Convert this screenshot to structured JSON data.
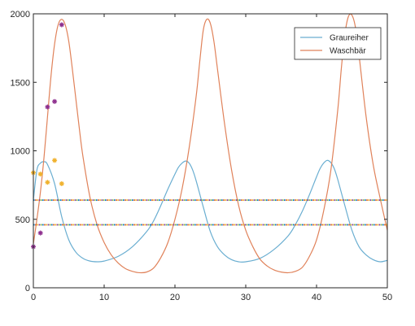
{
  "chart_data": {
    "type": "line",
    "xlim": [
      0,
      50
    ],
    "ylim": [
      0,
      2000
    ],
    "xticks": [
      0,
      10,
      20,
      30,
      40,
      50
    ],
    "yticks": [
      0,
      500,
      1000,
      1500,
      2000
    ],
    "grid": false,
    "legend_position": "top-right",
    "series": [
      {
        "name": "Graureiher",
        "color": "#6aaed1",
        "x": [
          0,
          0.5,
          1,
          1.5,
          2,
          3,
          4,
          5,
          6,
          7,
          8,
          9,
          10,
          12,
          14,
          16,
          17,
          18,
          19,
          20,
          20.5,
          21,
          21.5,
          22,
          22.5,
          23,
          24,
          25,
          26,
          27,
          28,
          29,
          30,
          32,
          34,
          36,
          37,
          38,
          39,
          40,
          40.5,
          41,
          41.5,
          42,
          42.5,
          43,
          44,
          45,
          46,
          47,
          48,
          49,
          50
        ],
        "y": [
          640,
          860,
          910,
          920,
          900,
          760,
          520,
          350,
          260,
          215,
          195,
          190,
          195,
          230,
          300,
          410,
          490,
          600,
          720,
          830,
          880,
          910,
          925,
          910,
          860,
          780,
          590,
          410,
          300,
          240,
          205,
          190,
          190,
          215,
          280,
          380,
          460,
          560,
          680,
          810,
          870,
          910,
          930,
          915,
          870,
          790,
          600,
          420,
          300,
          240,
          205,
          190,
          200
        ]
      },
      {
        "name": "Waschbär",
        "color": "#e0825a",
        "x": [
          0,
          0.5,
          1,
          1.5,
          2,
          2.5,
          3,
          3.5,
          4,
          4.5,
          5,
          5.5,
          6,
          6.5,
          7,
          8,
          9,
          10,
          11,
          12,
          13,
          14,
          15,
          16,
          17,
          18,
          19,
          20,
          21,
          22,
          23,
          23.5,
          24,
          24.5,
          25,
          25.5,
          26,
          27,
          28,
          29,
          30,
          31,
          32,
          33,
          34,
          35,
          36,
          37,
          38,
          39,
          40,
          41,
          42,
          43,
          43.5,
          44,
          44.5,
          45,
          45.5,
          46,
          47,
          48,
          49,
          50
        ],
        "y": [
          320,
          500,
          700,
          950,
          1250,
          1550,
          1780,
          1920,
          1960,
          1920,
          1800,
          1600,
          1380,
          1160,
          960,
          660,
          460,
          330,
          240,
          180,
          140,
          120,
          110,
          115,
          145,
          220,
          330,
          500,
          720,
          1020,
          1400,
          1650,
          1880,
          1960,
          1930,
          1800,
          1600,
          1200,
          860,
          600,
          420,
          300,
          210,
          160,
          130,
          115,
          110,
          120,
          150,
          230,
          350,
          560,
          850,
          1300,
          1600,
          1850,
          1980,
          1990,
          1900,
          1700,
          1250,
          900,
          650,
          420
        ]
      },
      {
        "name": "",
        "color": "#8e2f8e",
        "marker": "*",
        "x": [
          0,
          1,
          2,
          3,
          4
        ],
        "y": [
          300,
          400,
          1320,
          1360,
          1920
        ]
      },
      {
        "name": "",
        "color": "#f0b12c",
        "marker": "*",
        "x": [
          0,
          1,
          2,
          3,
          4
        ],
        "y": [
          840,
          830,
          770,
          930,
          760
        ]
      }
    ],
    "reference_lines": [
      {
        "y": 640,
        "colors": [
          "#0072bd",
          "#d95319",
          "#edb120",
          "#7e2f8e",
          "#77ac30"
        ]
      },
      {
        "y": 460,
        "colors": [
          "#0072bd",
          "#d95319",
          "#edb120",
          "#7e2f8e",
          "#77ac30"
        ]
      }
    ]
  }
}
